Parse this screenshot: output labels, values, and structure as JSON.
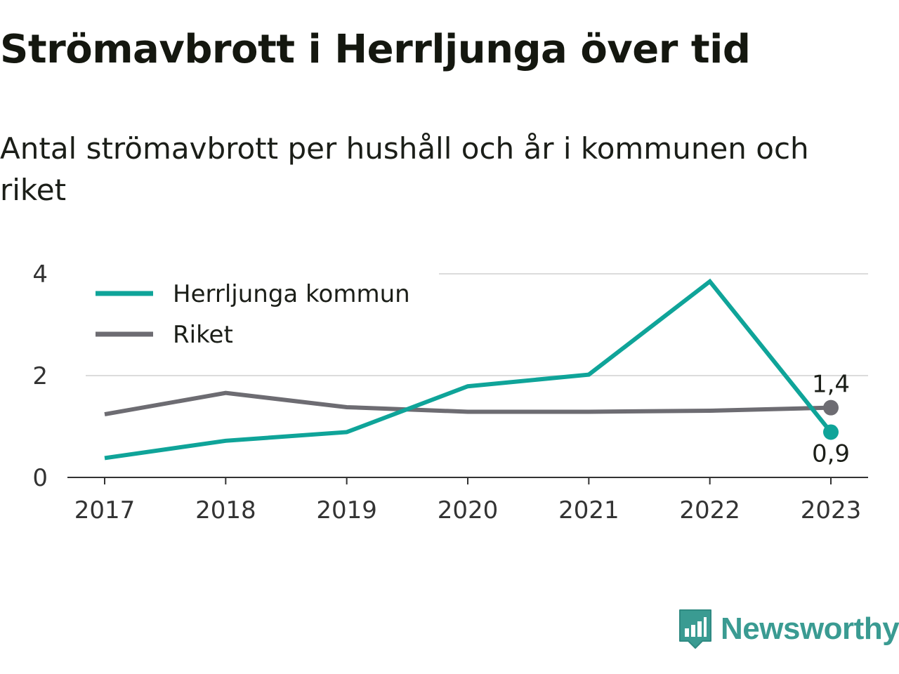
{
  "title": "Strömavbrott i Herrljunga över tid",
  "subtitle": "Antal strömavbrott per hushåll och år i kommunen och riket",
  "logo_text": "Newsworthy",
  "logo_icon": "bar-chart-speech-bubble-icon",
  "chart_data": {
    "type": "line",
    "x": [
      "2017",
      "2018",
      "2019",
      "2020",
      "2021",
      "2022",
      "2023"
    ],
    "ylim": [
      0,
      4
    ],
    "yticks": [
      0,
      2,
      4
    ],
    "grid": true,
    "legend_position": "top-left",
    "series": [
      {
        "name": "Herrljunga kommun",
        "color": "#0fa499",
        "values": [
          0.38,
          0.72,
          0.89,
          1.79,
          2.02,
          3.85,
          0.89
        ],
        "end_label": "0,9"
      },
      {
        "name": "Riket",
        "color": "#6d6c72",
        "values": [
          1.24,
          1.66,
          1.38,
          1.29,
          1.29,
          1.31,
          1.37
        ],
        "end_label": "1,4"
      }
    ]
  }
}
